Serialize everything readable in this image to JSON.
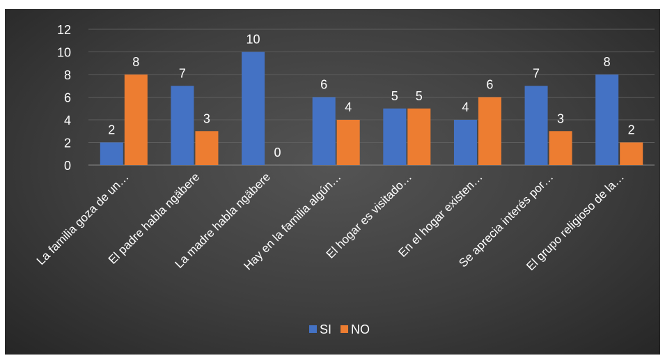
{
  "chart_data": {
    "type": "bar",
    "categories": [
      "La familia goza de un…",
      "El padre habla ngäbere",
      "La madre habla ngäbere",
      "Hay en la familia algún…",
      "El hogar es visitado…",
      "En el hogar existen…",
      "Se aprecia interés por…",
      "El grupo religioso de la…"
    ],
    "series": [
      {
        "name": "SI",
        "values": [
          2,
          7,
          10,
          6,
          5,
          4,
          7,
          8
        ],
        "color": "#4472C4"
      },
      {
        "name": "NO",
        "values": [
          8,
          3,
          0,
          4,
          5,
          6,
          3,
          2
        ],
        "color": "#ED7D31"
      }
    ],
    "ylim": [
      0,
      12
    ],
    "yticks": [
      "0",
      "2",
      "4",
      "6",
      "8",
      "10",
      "12"
    ],
    "grid": true,
    "legend": "bottom",
    "data_labels": true
  }
}
